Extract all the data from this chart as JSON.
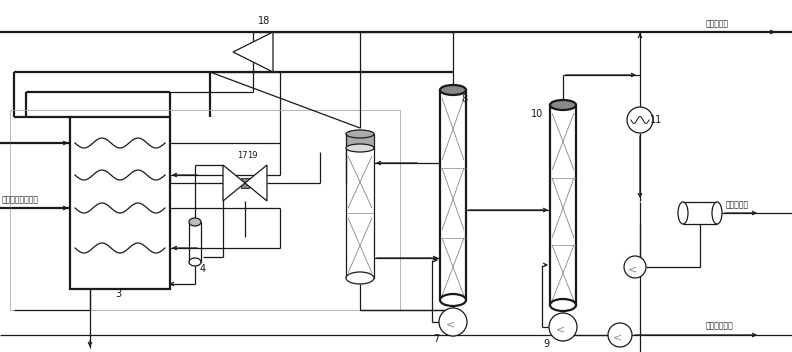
{
  "bg_color": "#ffffff",
  "lc": "#1a1a1a",
  "gray": "#888888",
  "lgray": "#aaaaaa",
  "chinese": {
    "dry_gas": "干燥的原料天然气",
    "product_gas": "产品天然气",
    "lpg": "液化气产品",
    "stable_hc": "稳定轻烃产品"
  },
  "nums": {
    "n18": "18",
    "n8": "8",
    "n10": "10",
    "n11": "11",
    "n17": "17",
    "n19": "19",
    "n4": "4",
    "n3": "3",
    "n7": "7",
    "n9": "9"
  }
}
